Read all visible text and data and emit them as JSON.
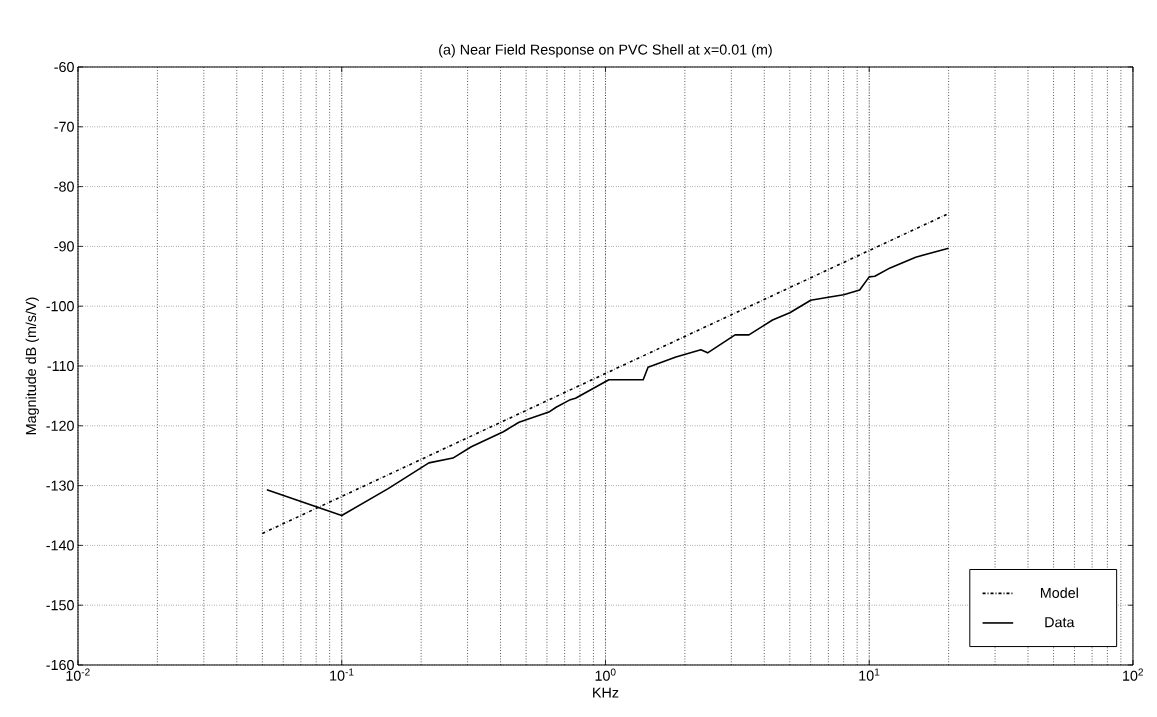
{
  "chart_data": {
    "type": "line",
    "title": "(a) Near Field Response on PVC Shell at x=0.01 (m)",
    "xlabel": "KHz",
    "ylabel": "Magnitude dB (m/s/V)",
    "log": "x",
    "grid": true,
    "legend": "bottom right",
    "xlim": [
      0.01,
      100
    ],
    "ylim": [
      -160,
      -60
    ],
    "xticks": [
      {
        "value": 0.01,
        "label": "10$^{-2}$"
      },
      {
        "value": 0.1,
        "label": "10$^{-1}$"
      },
      {
        "value": 1,
        "label": "10$^{0}$"
      },
      {
        "value": 10,
        "label": "10$^{1}$"
      },
      {
        "value": 100,
        "label": "10$^{2}$"
      }
    ],
    "yticks": [
      -160,
      -150,
      -140,
      -130,
      -120,
      -110,
      -100,
      -90,
      -80,
      -70,
      -60
    ],
    "series": [
      {
        "name": "Model",
        "color": "#000000",
        "line_style": "dashdot",
        "x": [
          0.05,
          20
        ],
        "values": [
          -138,
          -84.5
        ]
      },
      {
        "name": "Data",
        "color": "#000000",
        "line_style": "solid",
        "x": [
          0.052,
          0.1,
          0.15,
          0.214,
          0.264,
          0.31,
          0.41,
          0.47,
          0.61,
          0.65,
          0.73,
          0.77,
          1.03,
          1.39,
          1.45,
          1.85,
          2.3,
          2.44,
          3.1,
          3.5,
          4.3,
          5,
          6,
          7,
          8,
          9.2,
          10,
          10.5,
          12,
          15,
          20
        ],
        "values": [
          -130.7,
          -135,
          -130.5,
          -126.2,
          -125.4,
          -123.5,
          -121,
          -119.4,
          -117.7,
          -116.9,
          -115.7,
          -115.4,
          -112.3,
          -112.3,
          -110.2,
          -108.5,
          -107.3,
          -107.8,
          -104.8,
          -104.8,
          -102.3,
          -101.1,
          -99,
          -98.5,
          -98.1,
          -97.3,
          -95.1,
          -95,
          -93.6,
          -91.8,
          -90.3
        ]
      }
    ]
  }
}
